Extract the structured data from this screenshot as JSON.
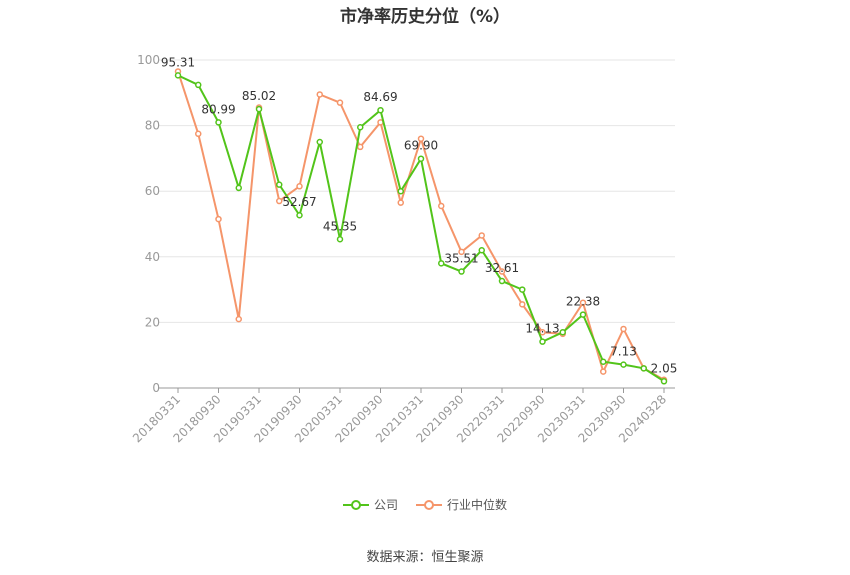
{
  "chart_data": {
    "type": "line",
    "title": "市净率历史分位（%）",
    "ylim": [
      0,
      100
    ],
    "yticks": [
      0,
      20,
      40,
      60,
      80,
      100
    ],
    "grid": true,
    "legend_position": "bottom-center",
    "x": [
      "20180331",
      "20180630",
      "20180930",
      "20181231",
      "20190331",
      "20190630",
      "20190930",
      "20191231",
      "20200331",
      "20200630",
      "20200930",
      "20201231",
      "20210331",
      "20210630",
      "20210930",
      "20211231",
      "20220331",
      "20220630",
      "20220930",
      "20221231",
      "20230331",
      "20230630",
      "20230930",
      "20231231",
      "20240328"
    ],
    "x_tick_labels": [
      "20180331",
      "20180930",
      "20190331",
      "20190930",
      "20200331",
      "20200930",
      "20210331",
      "20210930",
      "20220331",
      "20220930",
      "20230331",
      "20230930",
      "20240328"
    ],
    "series": [
      {
        "name": "公司",
        "color": "#52c41a",
        "values": [
          95.31,
          92.4,
          80.99,
          61.0,
          85.02,
          62.0,
          52.67,
          75.0,
          45.35,
          79.5,
          84.69,
          60.0,
          69.9,
          38.0,
          35.51,
          42.0,
          32.61,
          30.0,
          14.13,
          17.0,
          22.38,
          8.0,
          7.13,
          6.0,
          2.05
        ],
        "labels": {
          "0": "95.31",
          "2": "80.99",
          "4": "85.02",
          "6": "52.67",
          "8": "45.35",
          "10": "84.69",
          "12": "69.90",
          "14": "35.51",
          "16": "32.61",
          "18": "14.13",
          "20": "22.38",
          "22": "7.13",
          "24": "2.05"
        }
      },
      {
        "name": "行业中位数",
        "color": "#f5956a",
        "values": [
          96.5,
          77.5,
          51.5,
          21.0,
          85.5,
          57.0,
          61.5,
          89.5,
          87.0,
          73.5,
          81.0,
          56.5,
          76.0,
          55.5,
          41.5,
          46.5,
          35.5,
          25.5,
          17.0,
          16.5,
          26.0,
          5.0,
          18.0,
          6.0,
          2.5
        ],
        "labels": {}
      }
    ]
  },
  "source_label": "数据来源：恒生聚源"
}
